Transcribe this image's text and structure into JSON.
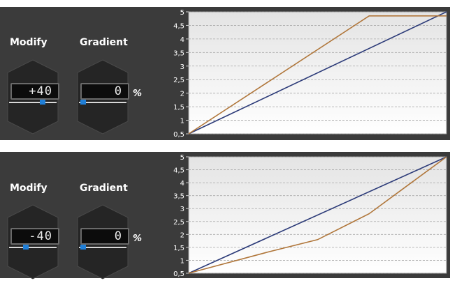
{
  "colors": {
    "panel_bg": "#3b3b3b",
    "slider_thumb": "#1f7fd8",
    "series_linear": "#2b3a78",
    "series_curve": "#b0763a"
  },
  "panels": [
    {
      "modify_label": "Modify",
      "gradient_label": "Gradient",
      "modify_value": "+40",
      "gradient_value": "0",
      "percent_sign": "%",
      "modify_slider_level": 0.7,
      "gradient_slider_level": 0.0
    },
    {
      "modify_label": "Modify",
      "gradient_label": "Gradient",
      "modify_value": "-40",
      "gradient_value": "0",
      "percent_sign": "%",
      "modify_slider_level": 0.3,
      "gradient_slider_level": 0.0
    }
  ],
  "chart_data": [
    {
      "type": "line",
      "y_ticks": [
        "0,5",
        "1",
        "1,5",
        "2",
        "2,5",
        "3",
        "3,5",
        "4",
        "4,5",
        "5"
      ],
      "ylim": [
        0.5,
        5
      ],
      "xlim": [
        0,
        1
      ],
      "grid": true,
      "series": [
        {
          "color": "#2b3a78",
          "x": [
            0,
            1
          ],
          "y": [
            0.5,
            5
          ]
        },
        {
          "color": "#b0763a",
          "x": [
            0,
            0.7,
            1
          ],
          "y": [
            0.5,
            4.85,
            4.85
          ]
        }
      ]
    },
    {
      "type": "line",
      "y_ticks": [
        "0,5",
        "1",
        "1,5",
        "2",
        "2,5",
        "3",
        "3,5",
        "4",
        "4,5",
        "5"
      ],
      "ylim": [
        0.5,
        5
      ],
      "xlim": [
        0,
        1
      ],
      "grid": true,
      "series": [
        {
          "color": "#2b3a78",
          "x": [
            0,
            1
          ],
          "y": [
            0.5,
            5
          ]
        },
        {
          "color": "#b0763a",
          "x": [
            0,
            0.3,
            0.5,
            0.7,
            0.85,
            1
          ],
          "y": [
            0.5,
            1.3,
            1.8,
            2.8,
            3.9,
            5
          ]
        }
      ]
    }
  ]
}
